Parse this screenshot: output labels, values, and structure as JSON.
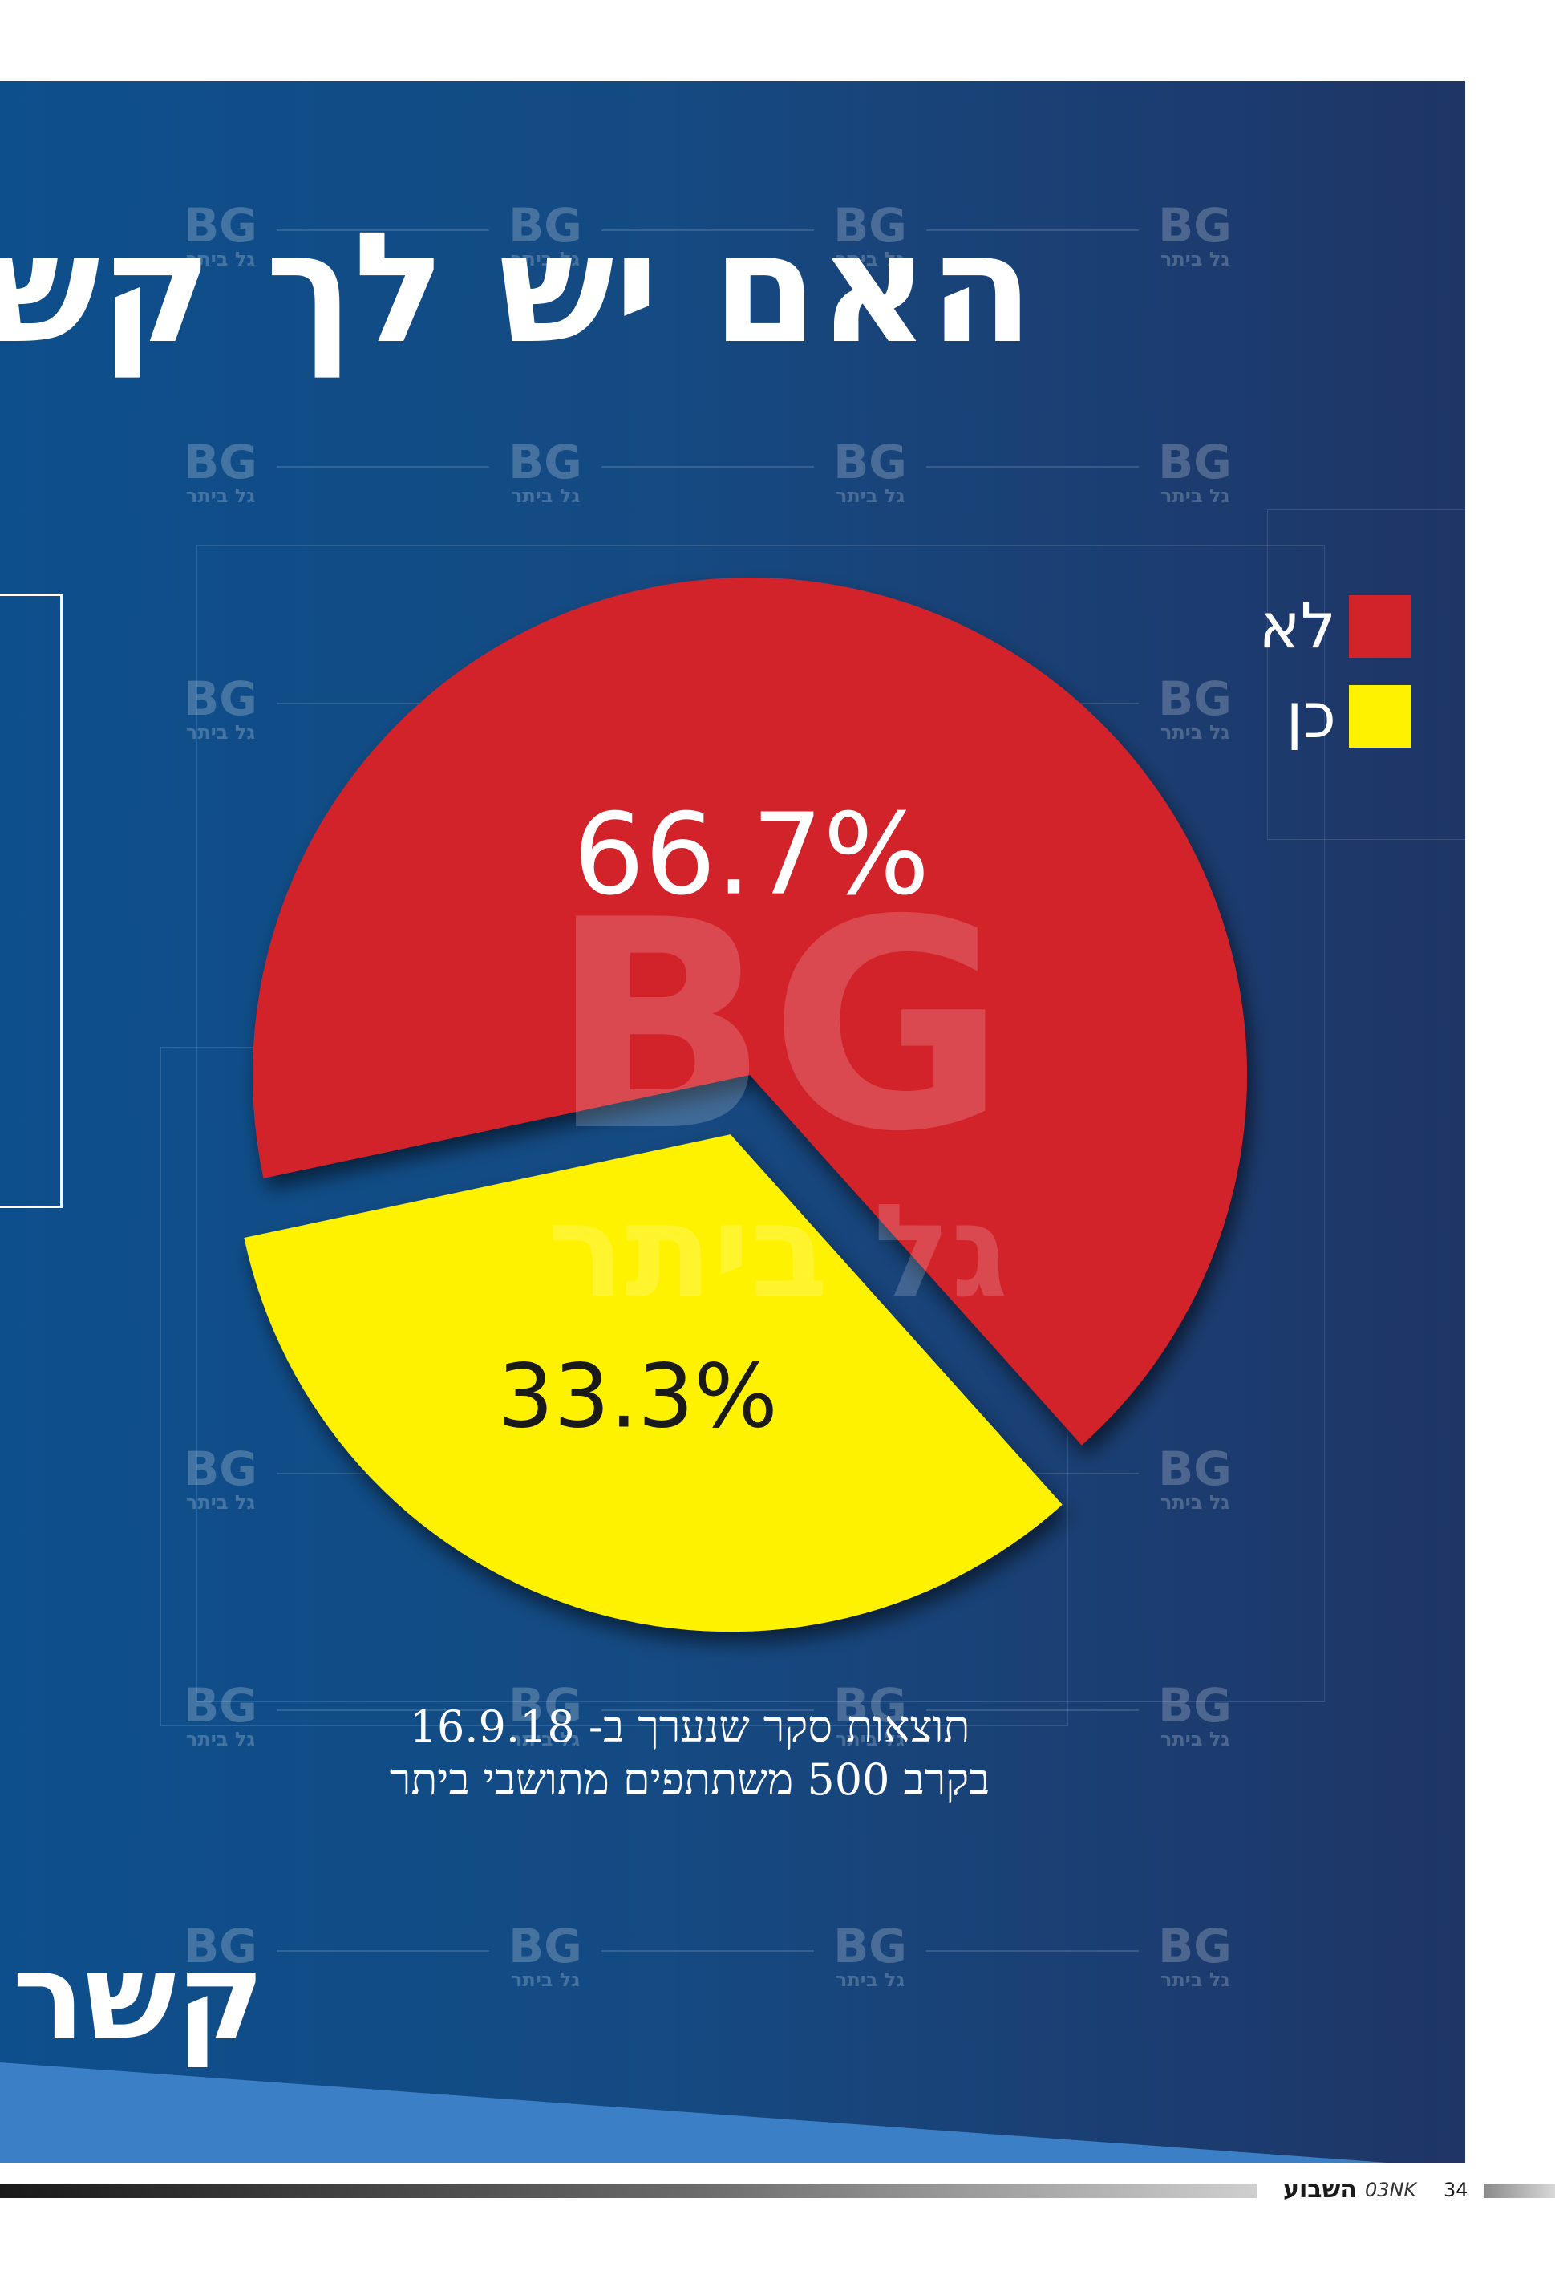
{
  "headline": "האם יש לך קש",
  "subheadline": "קשר",
  "chart_data": {
    "type": "pie",
    "slices": [
      {
        "label": "לא",
        "value": 66.7,
        "value_label": "66.7%",
        "color": "#d2232a",
        "label_color": "#ffffff"
      },
      {
        "label": "כן",
        "value": 33.3,
        "value_label": "33.3%",
        "color": "#fff200",
        "label_color": "#1a1a1a"
      }
    ],
    "legend_position": "top-right"
  },
  "caption": {
    "line1": "תוצאות סקר שנערך ב- 16.9.18",
    "line2": "בקרב 500 משתתפים מתושבי ביתר"
  },
  "watermark": {
    "logo": "BG",
    "name": "גל ביתר"
  },
  "footer": {
    "publication": "השבוע",
    "publication_sub": "03NK",
    "page_number": "34"
  },
  "colors": {
    "background_left": "#0d4f8c",
    "background_right": "#1f3566",
    "band": "#3b7fc6"
  }
}
